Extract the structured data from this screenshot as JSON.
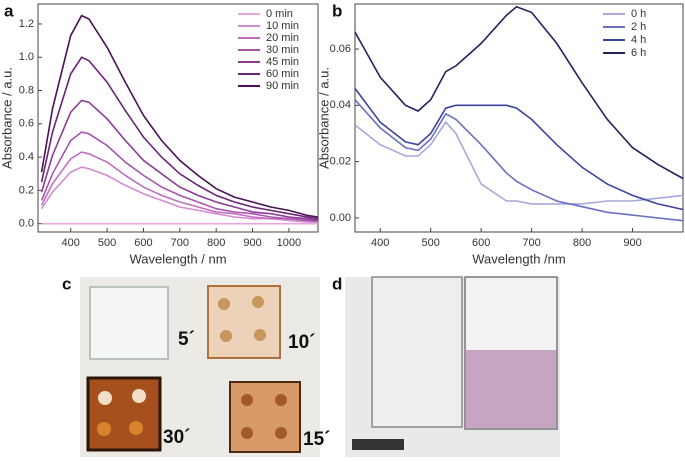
{
  "chart_data": [
    {
      "type": "line",
      "label": "a",
      "x_label": "Wavelength / nm",
      "y_label": "Absorbance / a.u.",
      "x": [
        320,
        350,
        400,
        430,
        450,
        500,
        550,
        600,
        650,
        700,
        750,
        800,
        850,
        900,
        950,
        1000,
        1050,
        1080
      ],
      "xlim": [
        310,
        1080
      ],
      "xticks": [
        400,
        500,
        600,
        700,
        800,
        900,
        1000
      ],
      "ylim": [
        -0.05,
        1.32
      ],
      "yticks": [
        {
          "value": 0,
          "label": "0.0"
        },
        {
          "value": 0.2,
          "label": "0.2"
        },
        {
          "value": 0.4,
          "label": "0.4"
        },
        {
          "value": 0.6,
          "label": "0.6"
        },
        {
          "value": 0.8,
          "label": "0.8"
        },
        {
          "value": 1,
          "label": "1.0"
        },
        {
          "value": 1.2,
          "label": "1.2"
        }
      ],
      "series": [
        {
          "name": "0 min",
          "color": "#e8a6e0",
          "values": [
            0,
            0,
            0,
            0,
            0,
            0,
            0,
            0,
            0,
            0,
            0,
            0,
            0,
            0,
            0,
            0,
            0,
            0
          ]
        },
        {
          "name": "10 min",
          "color": "#d58bd0",
          "values": [
            0.09,
            0.19,
            0.31,
            0.34,
            0.33,
            0.29,
            0.23,
            0.18,
            0.14,
            0.1,
            0.08,
            0.06,
            0.04,
            0.03,
            0.03,
            0.02,
            0.01,
            0.01
          ]
        },
        {
          "name": "20 min",
          "color": "#c06fbf",
          "values": [
            0.11,
            0.24,
            0.39,
            0.43,
            0.42,
            0.37,
            0.29,
            0.22,
            0.17,
            0.13,
            0.1,
            0.07,
            0.06,
            0.04,
            0.03,
            0.03,
            0.02,
            0.01
          ]
        },
        {
          "name": "30 min",
          "color": "#a855ad",
          "values": [
            0.14,
            0.3,
            0.5,
            0.55,
            0.54,
            0.47,
            0.37,
            0.29,
            0.22,
            0.17,
            0.13,
            0.09,
            0.07,
            0.06,
            0.04,
            0.03,
            0.02,
            0.02
          ]
        },
        {
          "name": "45 min",
          "color": "#8c3c96",
          "values": [
            0.19,
            0.41,
            0.67,
            0.74,
            0.73,
            0.63,
            0.5,
            0.38,
            0.3,
            0.22,
            0.17,
            0.13,
            0.1,
            0.07,
            0.06,
            0.04,
            0.03,
            0.02
          ]
        },
        {
          "name": "60 min",
          "color": "#6b2379",
          "values": [
            0.25,
            0.55,
            0.9,
            1.0,
            0.98,
            0.85,
            0.68,
            0.52,
            0.4,
            0.3,
            0.23,
            0.17,
            0.13,
            0.1,
            0.08,
            0.06,
            0.04,
            0.03
          ]
        },
        {
          "name": "90 min",
          "color": "#4a1155",
          "values": [
            0.31,
            0.69,
            1.13,
            1.25,
            1.23,
            1.06,
            0.85,
            0.65,
            0.5,
            0.38,
            0.29,
            0.21,
            0.16,
            0.13,
            0.1,
            0.08,
            0.05,
            0.04
          ]
        }
      ]
    },
    {
      "type": "line",
      "label": "b",
      "x_label": "Wavelength /nm",
      "y_label": "Absorbance / a.u.",
      "x": [
        350,
        400,
        450,
        475,
        500,
        530,
        550,
        600,
        650,
        670,
        700,
        750,
        800,
        850,
        900,
        950,
        1000
      ],
      "xlim": [
        350,
        1000
      ],
      "xticks": [
        400,
        500,
        600,
        700,
        800,
        900
      ],
      "ylim": [
        -0.005,
        0.076
      ],
      "yticks": [
        {
          "value": 0,
          "label": "0.00"
        },
        {
          "value": 0.02,
          "label": "0.02"
        },
        {
          "value": 0.04,
          "label": "0.04"
        },
        {
          "value": 0.06,
          "label": "0.06"
        }
      ],
      "series": [
        {
          "name": "0 h",
          "color": "#a8a8dc",
          "values": [
            0.033,
            0.026,
            0.022,
            0.022,
            0.026,
            0.034,
            0.03,
            0.012,
            0.006,
            0.006,
            0.005,
            0.005,
            0.005,
            0.006,
            0.006,
            0.007,
            0.008
          ]
        },
        {
          "name": "2 h",
          "color": "#6a70c4",
          "values": [
            0.042,
            0.032,
            0.025,
            0.024,
            0.028,
            0.037,
            0.035,
            0.026,
            0.016,
            0.013,
            0.01,
            0.006,
            0.004,
            0.002,
            0.001,
            0.0,
            -0.001
          ]
        },
        {
          "name": "4 h",
          "color": "#3a45a0",
          "values": [
            0.046,
            0.034,
            0.027,
            0.026,
            0.03,
            0.039,
            0.04,
            0.04,
            0.04,
            0.039,
            0.035,
            0.026,
            0.018,
            0.012,
            0.008,
            0.005,
            0.003
          ]
        },
        {
          "name": "6 h",
          "color": "#1e2460",
          "values": [
            0.066,
            0.05,
            0.04,
            0.038,
            0.042,
            0.052,
            0.054,
            0.062,
            0.072,
            0.075,
            0.073,
            0.062,
            0.048,
            0.035,
            0.025,
            0.019,
            0.014
          ]
        }
      ]
    }
  ],
  "photos": [
    {
      "label": "c",
      "annotations": [
        "5´",
        "10´",
        "30´",
        "15´"
      ]
    },
    {
      "label": "d"
    }
  ]
}
